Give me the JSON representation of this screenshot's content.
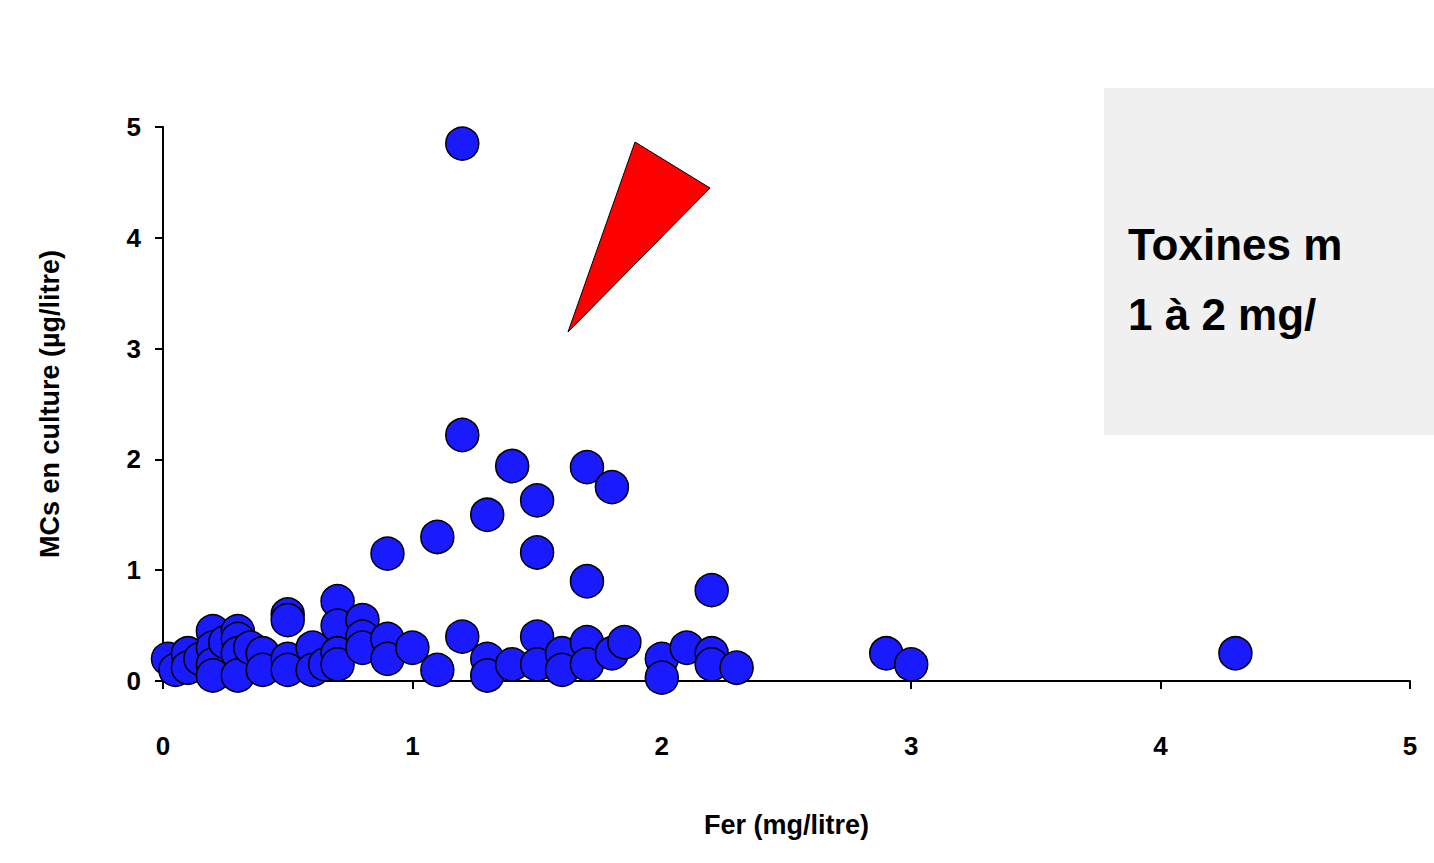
{
  "chart_data": {
    "type": "scatter",
    "x_label": "Fer (mg/litre)",
    "y_label": "MCs en culture (µg/litre)",
    "annotations": [
      "Toxines m",
      "1 à 2 mg/"
    ],
    "x": [
      0.02,
      0.05,
      0.1,
      0.1,
      0.15,
      0.2,
      0.2,
      0.2,
      0.2,
      0.25,
      0.3,
      0.3,
      0.3,
      0.3,
      0.35,
      0.4,
      0.4,
      0.5,
      0.5,
      0.5,
      0.5,
      0.6,
      0.6,
      0.65,
      0.7,
      0.7,
      0.7,
      0.7,
      0.8,
      0.8,
      0.8,
      0.9,
      0.9,
      0.9,
      1.0,
      1.1,
      1.1,
      1.2,
      1.2,
      1.2,
      1.3,
      1.3,
      1.3,
      1.4,
      1.4,
      1.5,
      1.5,
      1.5,
      1.5,
      1.6,
      1.6,
      1.7,
      1.7,
      1.7,
      1.7,
      1.8,
      1.8,
      1.85,
      2.0,
      2.0,
      2.1,
      2.2,
      2.2,
      2.2,
      2.3,
      2.9,
      3.0,
      4.3
    ],
    "values": [
      0.2,
      0.1,
      0.25,
      0.12,
      0.2,
      0.45,
      0.3,
      0.15,
      0.05,
      0.35,
      0.45,
      0.38,
      0.25,
      0.05,
      0.3,
      0.25,
      0.1,
      0.6,
      0.55,
      0.2,
      0.1,
      0.3,
      0.1,
      0.15,
      0.72,
      0.5,
      0.25,
      0.15,
      0.55,
      0.4,
      0.3,
      1.15,
      0.38,
      0.2,
      0.3,
      1.3,
      0.1,
      4.85,
      2.22,
      0.4,
      1.5,
      0.2,
      0.05,
      1.94,
      0.15,
      1.63,
      1.16,
      0.4,
      0.15,
      0.25,
      0.1,
      1.93,
      0.9,
      0.35,
      0.15,
      1.75,
      0.25,
      0.35,
      0.2,
      0.03,
      0.3,
      0.82,
      0.25,
      0.15,
      0.12,
      0.25,
      0.15,
      0.25
    ],
    "color": "#1a1aff",
    "marker": "circle",
    "xlim": [
      0,
      5
    ],
    "xticks": [
      0,
      1,
      2,
      3,
      4,
      5
    ],
    "ylim": [
      0,
      5
    ],
    "yticks": [
      0,
      1,
      2,
      3,
      4,
      5
    ],
    "grid": false
  }
}
